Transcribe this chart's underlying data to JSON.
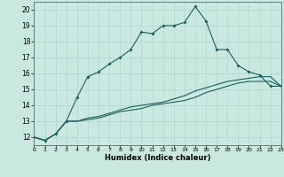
{
  "xlabel": "Humidex (Indice chaleur)",
  "bg_color": "#c8e8e0",
  "grid_color": "#b0d8d0",
  "line_color": "#1a6060",
  "xlim": [
    0,
    23
  ],
  "ylim": [
    11.5,
    20.5
  ],
  "xticks": [
    0,
    1,
    2,
    3,
    4,
    5,
    6,
    7,
    8,
    9,
    10,
    11,
    12,
    13,
    14,
    15,
    16,
    17,
    18,
    19,
    20,
    21,
    22,
    23
  ],
  "yticks": [
    12,
    13,
    14,
    15,
    16,
    17,
    18,
    19,
    20
  ],
  "line1_x": [
    0,
    1,
    2,
    3,
    4,
    5,
    6,
    7,
    8,
    9,
    10,
    11,
    12,
    13,
    14,
    15,
    16,
    17,
    18,
    19,
    20,
    21,
    22,
    23
  ],
  "line1_y": [
    12.0,
    11.8,
    12.2,
    13.0,
    14.5,
    15.8,
    16.1,
    16.6,
    17.0,
    17.5,
    18.6,
    18.5,
    19.0,
    19.0,
    19.2,
    20.2,
    19.3,
    17.5,
    17.5,
    16.5,
    16.1,
    15.9,
    15.2,
    15.2
  ],
  "line2_x": [
    0,
    1,
    2,
    3,
    4,
    5,
    6,
    7,
    8,
    9,
    10,
    11,
    12,
    13,
    14,
    15,
    16,
    17,
    18,
    19,
    20,
    21,
    22,
    23
  ],
  "line2_y": [
    12.0,
    11.8,
    12.2,
    13.0,
    13.0,
    13.2,
    13.3,
    13.5,
    13.7,
    13.9,
    14.0,
    14.1,
    14.2,
    14.4,
    14.6,
    14.9,
    15.1,
    15.3,
    15.5,
    15.6,
    15.7,
    15.8,
    15.8,
    15.2
  ],
  "line3_x": [
    0,
    1,
    2,
    3,
    4,
    5,
    6,
    7,
    8,
    9,
    10,
    11,
    12,
    13,
    14,
    15,
    16,
    17,
    18,
    19,
    20,
    21,
    22,
    23
  ],
  "line3_y": [
    12.0,
    11.8,
    12.2,
    13.0,
    13.0,
    13.1,
    13.2,
    13.4,
    13.6,
    13.7,
    13.8,
    14.0,
    14.1,
    14.2,
    14.3,
    14.5,
    14.8,
    15.0,
    15.2,
    15.4,
    15.5,
    15.5,
    15.5,
    15.2
  ]
}
